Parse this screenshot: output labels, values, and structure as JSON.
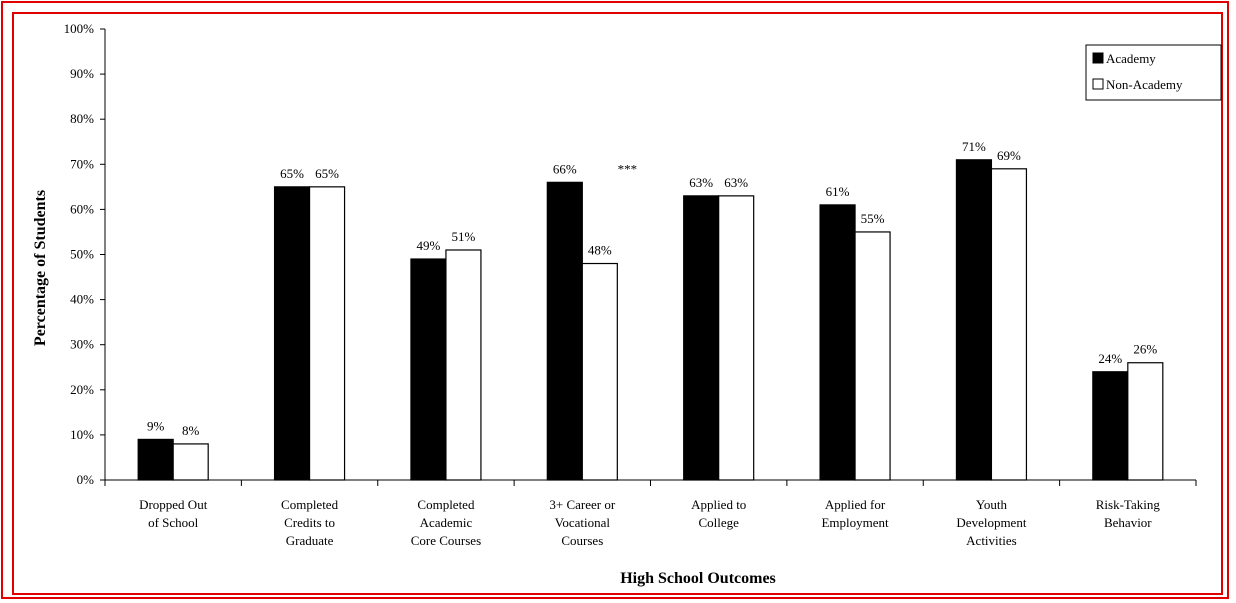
{
  "chart_data": {
    "type": "bar",
    "title": "",
    "xlabel": "High School Outcomes",
    "ylabel": "Percentage of Students",
    "ylim": [
      0,
      100
    ],
    "ytick_labels": [
      "0%",
      "10%",
      "20%",
      "30%",
      "40%",
      "50%",
      "60%",
      "70%",
      "80%",
      "90%",
      "100%"
    ],
    "grid": false,
    "legend_position": "top-right",
    "categories": [
      [
        "Dropped Out",
        "of School"
      ],
      [
        "Completed",
        "Credits to",
        "Graduate"
      ],
      [
        "Completed",
        "Academic",
        "Core Courses"
      ],
      [
        "3+ Career or",
        "Vocational",
        "Courses"
      ],
      [
        "Applied to",
        "College"
      ],
      [
        "Applied for",
        "Employment"
      ],
      [
        "Youth",
        "Development",
        "Activities"
      ],
      [
        "Risk-Taking",
        "Behavior"
      ]
    ],
    "series": [
      {
        "name": "Academy",
        "color": "#000000",
        "values": [
          9,
          65,
          49,
          66,
          63,
          61,
          71,
          24
        ],
        "labels": [
          "9%",
          "65%",
          "49%",
          "66%",
          "63%",
          "61%",
          "71%",
          "24%"
        ]
      },
      {
        "name": "Non-Academy",
        "color": "#ffffff",
        "values": [
          8,
          65,
          51,
          48,
          63,
          55,
          69,
          26
        ],
        "labels": [
          "8%",
          "65%",
          "51%",
          "48%",
          "63%",
          "55%",
          "69%",
          "26%"
        ]
      }
    ],
    "annotations": [
      {
        "category_index": 3,
        "text": "***"
      }
    ]
  }
}
